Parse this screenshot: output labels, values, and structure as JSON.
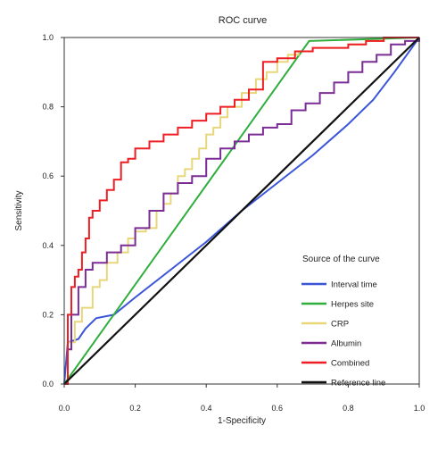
{
  "chart_data": {
    "type": "line",
    "title": "ROC curve",
    "xlabel": "1-Specificity",
    "ylabel": "Sensitivity",
    "xlim": [
      0.0,
      1.0
    ],
    "ylim": [
      0.0,
      1.0
    ],
    "xticks": [
      0.0,
      0.2,
      0.4,
      0.6,
      0.8,
      1.0
    ],
    "yticks": [
      0.0,
      0.2,
      0.4,
      0.6,
      0.8,
      1.0
    ],
    "xtick_labels": [
      "0.0",
      "0.2",
      "0.4",
      "0.6",
      "0.8",
      "1.0"
    ],
    "ytick_labels": [
      "0.0",
      "0.2",
      "0.4",
      "0.6",
      "0.8",
      "1.0"
    ],
    "grid": false,
    "legend": {
      "title": "Source of the curve",
      "placement": "bottom-right"
    },
    "series": [
      {
        "name": "Interval time",
        "color": "#3b55d9",
        "step": false,
        "x": [
          0.0,
          0.01,
          0.04,
          0.06,
          0.09,
          0.14,
          0.2,
          0.3,
          0.4,
          0.5,
          0.6,
          0.7,
          0.8,
          0.87,
          0.93,
          1.0
        ],
        "y": [
          0.0,
          0.12,
          0.13,
          0.16,
          0.19,
          0.2,
          0.25,
          0.33,
          0.41,
          0.5,
          0.58,
          0.66,
          0.75,
          0.82,
          0.9,
          1.0
        ]
      },
      {
        "name": "Herpes site",
        "color": "#2fae3c",
        "step": false,
        "x": [
          0.0,
          0.69,
          1.0
        ],
        "y": [
          0.0,
          0.99,
          1.0
        ]
      },
      {
        "name": "CRP",
        "color": "#e8d77a",
        "step": true,
        "x": [
          0.0,
          0.01,
          0.03,
          0.05,
          0.08,
          0.1,
          0.12,
          0.15,
          0.18,
          0.2,
          0.23,
          0.26,
          0.28,
          0.3,
          0.32,
          0.34,
          0.36,
          0.38,
          0.4,
          0.42,
          0.44,
          0.46,
          0.5,
          0.54,
          0.57,
          0.6,
          0.63,
          0.66,
          0.7,
          0.75,
          0.8,
          0.85,
          0.9,
          0.95,
          1.0
        ],
        "y": [
          0.0,
          0.12,
          0.18,
          0.22,
          0.28,
          0.3,
          0.35,
          0.38,
          0.42,
          0.44,
          0.45,
          0.5,
          0.52,
          0.55,
          0.6,
          0.62,
          0.65,
          0.68,
          0.72,
          0.74,
          0.77,
          0.8,
          0.84,
          0.88,
          0.9,
          0.93,
          0.95,
          0.96,
          0.97,
          0.97,
          0.98,
          0.99,
          1.0,
          1.0,
          1.0
        ]
      },
      {
        "name": "Albumin",
        "color": "#7b2c95",
        "step": true,
        "x": [
          0.0,
          0.01,
          0.02,
          0.04,
          0.06,
          0.08,
          0.12,
          0.16,
          0.2,
          0.24,
          0.28,
          0.32,
          0.36,
          0.4,
          0.44,
          0.48,
          0.52,
          0.56,
          0.6,
          0.64,
          0.68,
          0.72,
          0.76,
          0.8,
          0.84,
          0.88,
          0.92,
          0.96,
          1.0
        ],
        "y": [
          0.0,
          0.1,
          0.2,
          0.28,
          0.33,
          0.35,
          0.38,
          0.4,
          0.45,
          0.5,
          0.55,
          0.58,
          0.6,
          0.65,
          0.68,
          0.7,
          0.72,
          0.74,
          0.75,
          0.79,
          0.81,
          0.84,
          0.87,
          0.9,
          0.93,
          0.95,
          0.98,
          0.99,
          1.0
        ]
      },
      {
        "name": "Combined",
        "color": "#ee1e25",
        "step": true,
        "x": [
          0.0,
          0.01,
          0.02,
          0.03,
          0.04,
          0.05,
          0.06,
          0.07,
          0.08,
          0.1,
          0.12,
          0.14,
          0.16,
          0.18,
          0.2,
          0.24,
          0.28,
          0.32,
          0.36,
          0.4,
          0.44,
          0.48,
          0.52,
          0.56,
          0.6,
          0.65,
          0.7,
          0.75,
          0.8,
          0.85,
          0.9,
          1.0
        ],
        "y": [
          0.0,
          0.2,
          0.28,
          0.31,
          0.33,
          0.38,
          0.42,
          0.48,
          0.5,
          0.53,
          0.56,
          0.59,
          0.64,
          0.65,
          0.68,
          0.7,
          0.72,
          0.74,
          0.76,
          0.78,
          0.8,
          0.82,
          0.85,
          0.93,
          0.94,
          0.96,
          0.97,
          0.97,
          0.98,
          0.99,
          1.0,
          1.0
        ]
      },
      {
        "name": "Reference line",
        "color": "#111111",
        "step": false,
        "x": [
          0.0,
          1.0
        ],
        "y": [
          0.0,
          1.0
        ]
      }
    ]
  }
}
